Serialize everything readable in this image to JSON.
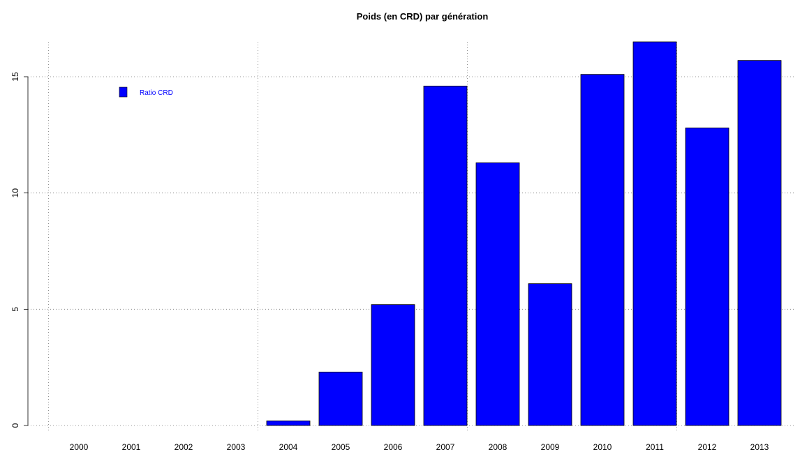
{
  "chart_data": {
    "type": "bar",
    "title": "Poids (en CRD) par génération",
    "xlabel": "",
    "ylabel": "",
    "categories": [
      "2000",
      "2001",
      "2002",
      "2003",
      "2004",
      "2005",
      "2006",
      "2007",
      "2008",
      "2009",
      "2010",
      "2011",
      "2012",
      "2013"
    ],
    "series": [
      {
        "name": "Ratio CRD",
        "values": [
          0,
          0,
          0,
          0,
          0.2,
          2.3,
          5.2,
          14.6,
          11.3,
          6.1,
          15.1,
          16.5,
          12.8,
          15.7
        ],
        "color": "#0000ff"
      }
    ],
    "y_ticks": [
      "0",
      "5",
      "10",
      "15"
    ],
    "ylim": [
      0,
      16.5
    ],
    "grid": true,
    "legend_position": "top-left"
  }
}
